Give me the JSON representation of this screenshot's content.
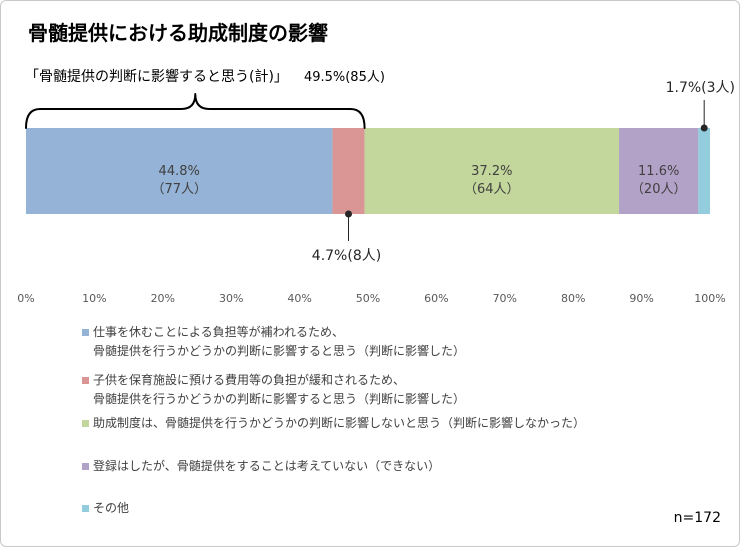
{
  "chart_data": {
    "type": "bar",
    "orientation": "horizontal",
    "stacked": true,
    "title": "骨髄提供における助成制度の影響",
    "xlim": [
      0,
      100
    ],
    "x_ticks": [
      "0%",
      "10%",
      "20%",
      "30%",
      "40%",
      "50%",
      "60%",
      "70%",
      "80%",
      "90%",
      "100%"
    ],
    "grid": false,
    "legend_position": "bottom-left",
    "sample_size": "n=172",
    "series": [
      {
        "name": "仕事を休むことによる負担等が補われるため、\n骨髄提供を行うかどうかの判断に影響すると思う（判断に影響した）",
        "value": 44.8,
        "count": 77,
        "color": "#95b3d7",
        "label_placement": "inside",
        "label": "44.8%",
        "count_label": "（77人）"
      },
      {
        "name": "子供を保育施設に預ける費用等の負担が緩和されるため、\n骨髄提供を行うかどうかの判断に影響すると思う（判断に影響した）",
        "value": 4.7,
        "count": 8,
        "color": "#d99694",
        "label_placement": "below",
        "label": "4.7%(8人)"
      },
      {
        "name": "助成制度は、骨髄提供を行うかどうかの判断に影響しないと思う（判断に影響しなかった）",
        "value": 37.2,
        "count": 64,
        "color": "#c3d69b",
        "label_placement": "inside",
        "label": "37.2%",
        "count_label": "（64人）"
      },
      {
        "name": "登録はしたが、骨髄提供をすることは考えていない（できない）",
        "value": 11.6,
        "count": 20,
        "color": "#b3a2c7",
        "label_placement": "inside",
        "label": "11.6%",
        "count_label": "（20人）"
      },
      {
        "name": "その他",
        "value": 1.7,
        "count": 3,
        "color": "#93cddd",
        "label_placement": "above",
        "label": "1.7%(3人)"
      }
    ],
    "group_annotation": {
      "label": "「骨髄提供の判断に影響すると思う(計)」",
      "value_label": "49.5%(85人)",
      "count": 85,
      "range": [
        0,
        49.5
      ]
    }
  }
}
